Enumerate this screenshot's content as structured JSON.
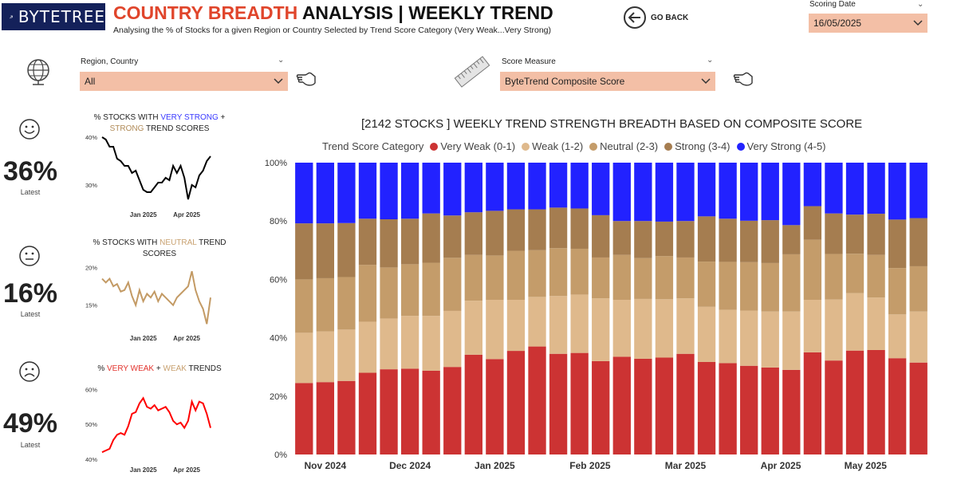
{
  "header": {
    "logo_text": "BYTETREE",
    "title_accent": "COUNTRY BREADTH",
    "title_rest": " ANALYSIS | WEEKLY TREND",
    "subtitle": "Analysing the % of Stocks for a given Region or Country Selected by Trend Score Category (Very Weak...Very Strong)",
    "go_back_label": "GO BACK"
  },
  "scoring_date": {
    "label": "Scoring Date",
    "value": "16/05/2025"
  },
  "filters": {
    "region": {
      "label": "Region, Country",
      "value": "All"
    },
    "score_measure": {
      "label": "Score Measure",
      "value": "ByteTrend Composite Score"
    }
  },
  "kpis": [
    {
      "title_parts": [
        {
          "text": "% STOCKS WITH ",
          "color": "#222222"
        },
        {
          "text": "VERY STRONG",
          "color": "#3a3aff"
        },
        {
          "text": " + ",
          "color": "#222222"
        },
        {
          "text": "STRONG",
          "color": "#b08a57"
        },
        {
          "text": " TREND SCORES",
          "color": "#222222"
        }
      ],
      "value": "36%",
      "sub": "Latest",
      "face": "happy-face-icon",
      "line_color": "#000000",
      "y_ticks": [
        "40%",
        "30%"
      ],
      "x_ticks": [
        "Jan 2025",
        "Apr 2025"
      ]
    },
    {
      "title_parts": [
        {
          "text": "% STOCKS WITH ",
          "color": "#222222"
        },
        {
          "text": "NEUTRAL",
          "color": "#c8a170"
        },
        {
          "text": " TREND SCORES",
          "color": "#222222"
        }
      ],
      "value": "16%",
      "sub": "Latest",
      "face": "neutral-face-icon",
      "line_color": "#c39a64",
      "y_ticks": [
        "20%",
        "15%"
      ],
      "x_ticks": [
        "Jan 2025",
        "Apr 2025"
      ]
    },
    {
      "title_parts": [
        {
          "text": "% ",
          "color": "#222222"
        },
        {
          "text": "VERY WEAK",
          "color": "#e2332d"
        },
        {
          "text": " + ",
          "color": "#222222"
        },
        {
          "text": "WEAK",
          "color": "#c8a170"
        },
        {
          "text": " TRENDS",
          "color": "#222222"
        }
      ],
      "value": "49%",
      "sub": "Latest",
      "face": "sad-face-icon",
      "line_color": "#ff0000",
      "y_ticks": [
        "60%",
        "50%",
        "40%"
      ],
      "x_ticks": [
        "Jan 2025",
        "Apr 2025"
      ]
    }
  ],
  "chart_data": [
    {
      "type": "bar",
      "stacked": true,
      "title": "[2142 STOCKS ] WEEKLY TREND STRENGTH BREADTH BASED ON COMPOSITE SCORE",
      "legend_title": "Trend Score Category",
      "legend_position": "top",
      "y_ticks": [
        "0%",
        "20%",
        "40%",
        "60%",
        "80%",
        "100%"
      ],
      "ylim": [
        0,
        100
      ],
      "x_tick_labels": [
        "Nov 2024",
        "Dec 2024",
        "Jan 2025",
        "Feb 2025",
        "Mar 2025",
        "Apr 2025",
        "May 2025"
      ],
      "x_tick_positions": [
        1.5,
        5.5,
        9.5,
        14,
        18.5,
        23,
        27
      ],
      "series": [
        {
          "name": "Very Weak (0-1)",
          "color": "#cc3333",
          "values": [
            24.5,
            24.8,
            25.2,
            28.0,
            29.2,
            29.4,
            28.7,
            30.0,
            34.2,
            32.7,
            35.5,
            37.0,
            34.5,
            34.8,
            32.0,
            33.5,
            32.8,
            33.2,
            34.5,
            31.7,
            31.3,
            30.4,
            29.8,
            29.0,
            35.0,
            32.2,
            35.6,
            35.8,
            33.0,
            31.5
          ]
        },
        {
          "name": "Weak (1-2)",
          "color": "#dfb98c",
          "values": [
            17.2,
            17.4,
            17.6,
            17.5,
            17.4,
            18.1,
            18.8,
            19.2,
            18.5,
            20.3,
            17.5,
            17.0,
            19.8,
            20.0,
            21.5,
            19.5,
            20.5,
            20.0,
            19.0,
            18.9,
            18.3,
            18.9,
            19.2,
            20.0,
            18.0,
            20.9,
            19.7,
            18.0,
            15.0,
            17.5
          ]
        },
        {
          "name": "Neutral (2-3)",
          "color": "#c49c6a",
          "values": [
            18.3,
            18.2,
            18.0,
            19.5,
            17.5,
            17.7,
            18.2,
            18.2,
            15.7,
            15.2,
            16.8,
            16.0,
            16.4,
            15.7,
            14.0,
            15.4,
            14.0,
            14.8,
            14.0,
            15.5,
            16.4,
            16.6,
            16.6,
            19.6,
            20.6,
            15.6,
            13.5,
            14.6,
            15.9,
            15.5
          ]
        },
        {
          "name": "Strong (3-4)",
          "color": "#a57d50",
          "values": [
            19.2,
            18.8,
            18.5,
            15.8,
            16.5,
            15.6,
            16.9,
            14.5,
            14.6,
            15.3,
            14.2,
            14.0,
            13.9,
            13.8,
            14.5,
            11.6,
            12.7,
            11.8,
            12.5,
            15.5,
            14.8,
            14.2,
            14.7,
            10.0,
            11.5,
            13.9,
            13.4,
            14.1,
            16.6,
            16.5
          ]
        },
        {
          "name": "Very Strong (4-5)",
          "color": "#2222ff",
          "values": [
            20.8,
            20.8,
            20.7,
            19.2,
            19.4,
            19.2,
            17.4,
            18.1,
            17.0,
            16.5,
            16.0,
            16.0,
            15.4,
            15.7,
            18.0,
            20.0,
            20.0,
            20.2,
            20.0,
            18.4,
            19.2,
            19.9,
            19.7,
            21.4,
            14.9,
            17.4,
            17.8,
            17.5,
            19.5,
            19.0
          ]
        }
      ]
    },
    {
      "type": "line",
      "title": "% STOCKS WITH VERY STRONG + STRONG TREND SCORES",
      "ylim": [
        26,
        41
      ],
      "y_ticks": [
        40,
        30
      ],
      "series": [
        {
          "name": "",
          "values": [
            40.0,
            39.5,
            38.0,
            38.0,
            35.5,
            35.0,
            34.0,
            34.0,
            32.5,
            33.0,
            31.0,
            29.0,
            28.5,
            28.5,
            29.5,
            30.5,
            30.5,
            31.5,
            31.0,
            34.0,
            32.5,
            34.0,
            31.5,
            27.0,
            30.0,
            29.5,
            32.0,
            33.0,
            35.0,
            36.0
          ]
        }
      ]
    },
    {
      "type": "line",
      "title": "% STOCKS WITH NEUTRAL TREND SCORES",
      "ylim": [
        12,
        21
      ],
      "y_ticks": [
        20,
        15
      ],
      "series": [
        {
          "name": "",
          "values": [
            18.5,
            18.0,
            18.5,
            17.5,
            17.8,
            16.8,
            17.0,
            18.0,
            16.2,
            15.0,
            17.0,
            15.5,
            16.5,
            16.0,
            16.8,
            15.5,
            16.5,
            16.0,
            15.5,
            15.0,
            16.0,
            16.5,
            17.0,
            17.5,
            19.5,
            17.0,
            15.5,
            14.5,
            12.5,
            16.0
          ]
        }
      ]
    },
    {
      "type": "line",
      "title": "% VERY WEAK + WEAK TRENDS",
      "ylim": [
        40,
        61
      ],
      "y_ticks": [
        60,
        50,
        40
      ],
      "series": [
        {
          "name": "",
          "values": [
            42.0,
            42.5,
            43.0,
            45.5,
            47.0,
            47.5,
            47.0,
            49.5,
            53.0,
            53.5,
            56.0,
            57.5,
            55.0,
            54.5,
            55.5,
            54.0,
            54.5,
            55.0,
            53.5,
            51.0,
            50.0,
            50.5,
            49.0,
            51.0,
            56.5,
            54.0,
            56.5,
            56.0,
            53.0,
            49.0
          ]
        }
      ]
    }
  ]
}
